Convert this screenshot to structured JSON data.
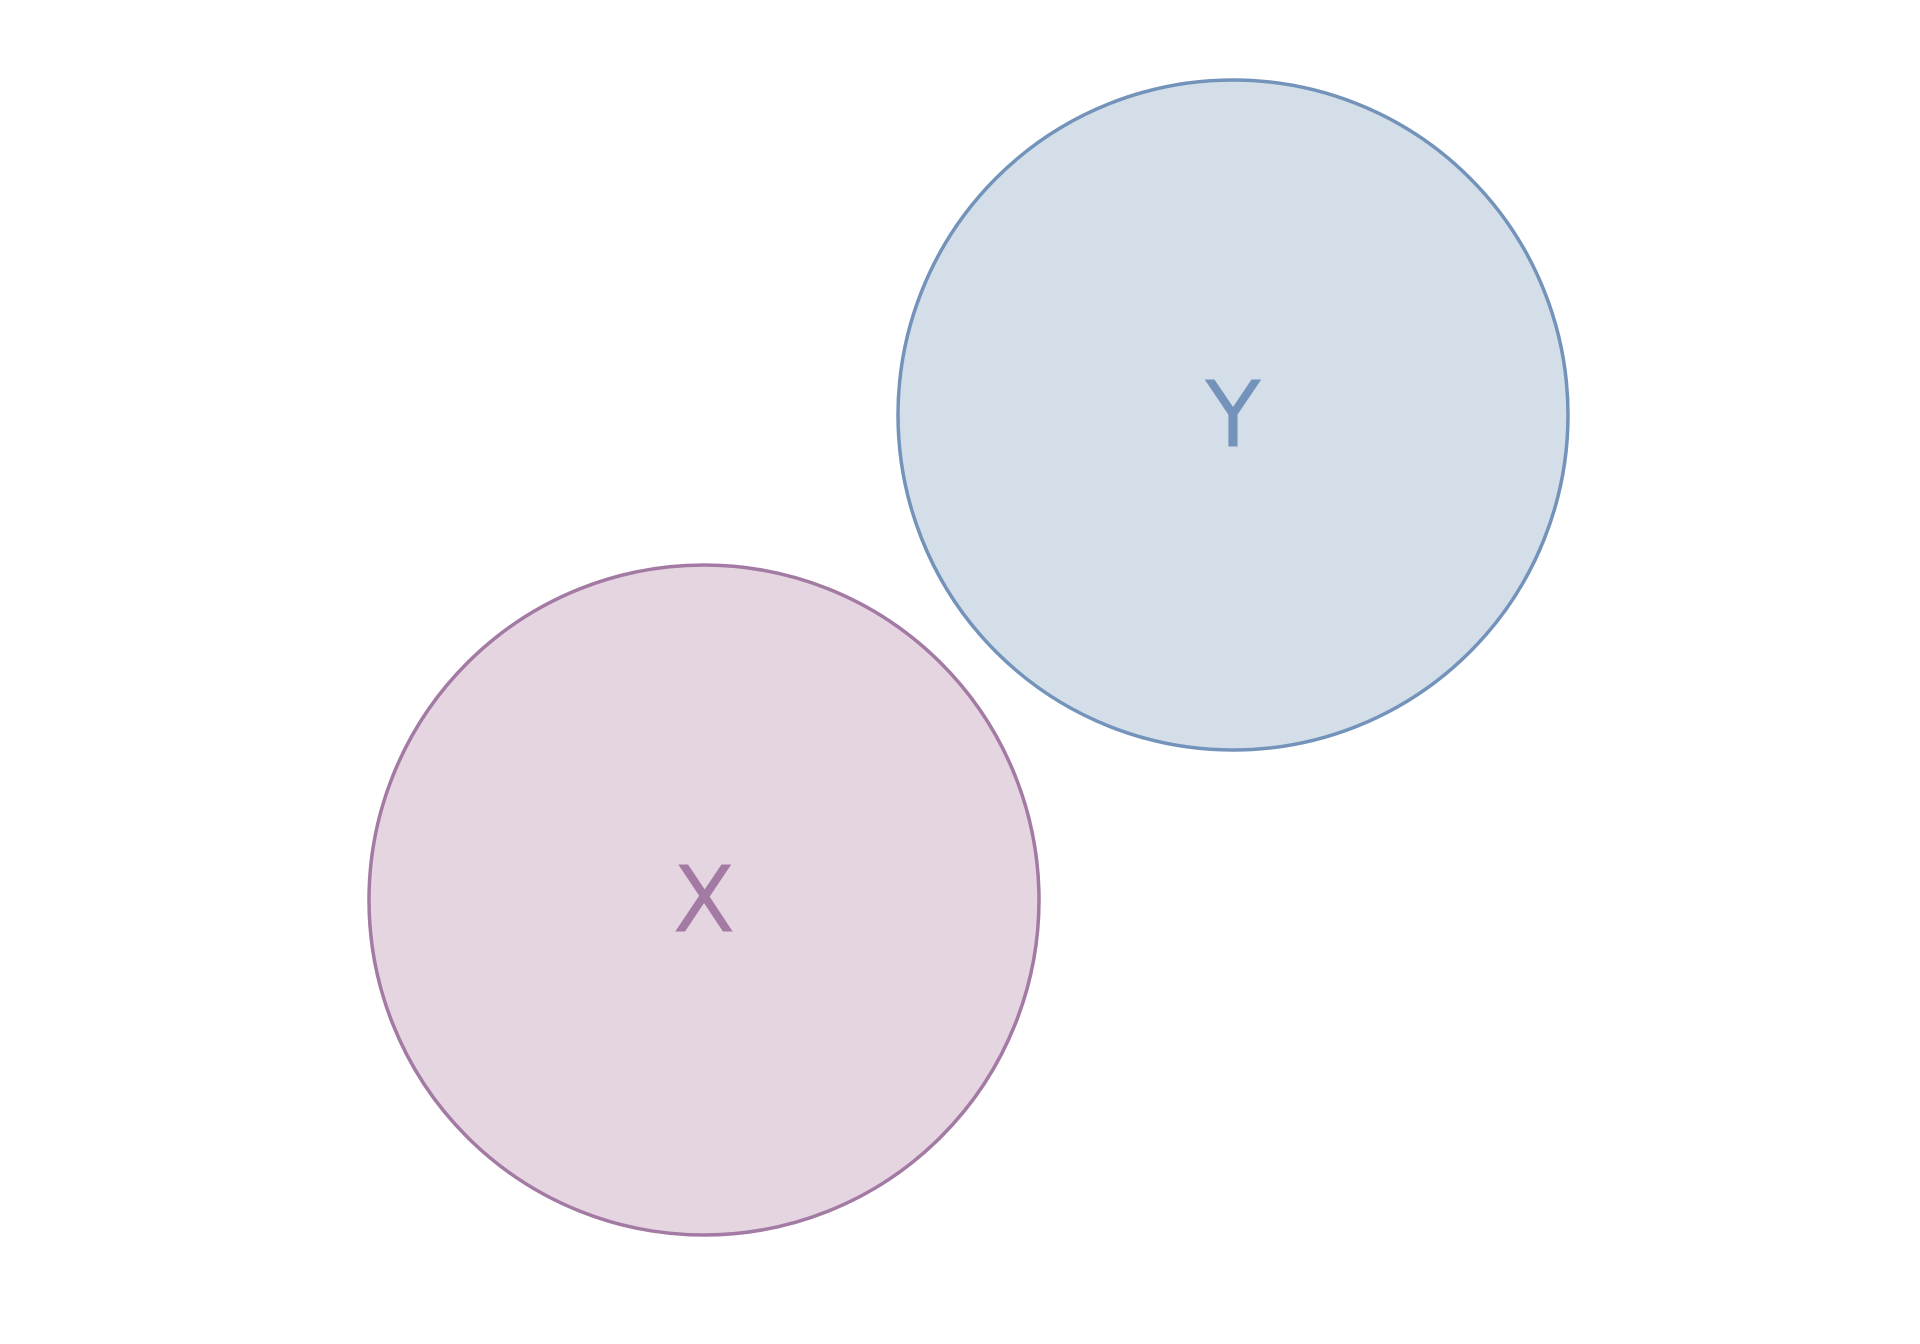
{
  "diagram": {
    "type": "venn",
    "sets": [
      {
        "id": "x",
        "label": "X",
        "fill": "#e4d5e1",
        "stroke": "#a37aa3",
        "label_color": "#a37aa3"
      },
      {
        "id": "y",
        "label": "Y",
        "fill": "#d3dee9",
        "stroke": "#7393ba",
        "label_color": "#7393ba"
      }
    ],
    "overlap": "none"
  }
}
